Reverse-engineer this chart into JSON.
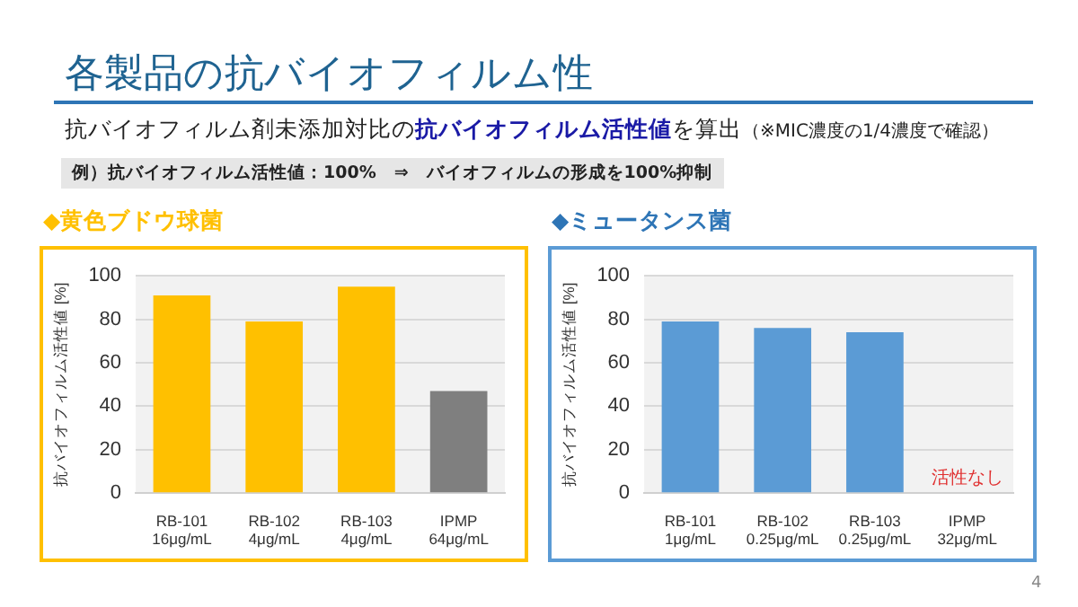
{
  "chart_data": [
    {
      "type": "bar",
      "title": "◆黄色ブドウ球菌",
      "ylabel": "抗バイオフィルム活性値 [%]",
      "categories": [
        "RB-101\n16μg/mL",
        "RB-102\n4μg/mL",
        "RB-103\n4μg/mL",
        "IPMP\n64μg/mL"
      ],
      "values": [
        91,
        79,
        95,
        47
      ],
      "colors": [
        "#ffc000",
        "#ffc000",
        "#ffc000",
        "#7f7f7f"
      ],
      "ylim": [
        0,
        100
      ],
      "yticks": [
        0,
        20,
        40,
        60,
        80,
        100
      ],
      "grid": "y",
      "legend": false,
      "annotations": [
        "各製品の抗バイオフィルム性",
        "抗バイオフィルム剤未添加対比の",
        "抗バイオフィルム活性値",
        "を算出",
        "（※MIC濃度の1/4濃度で確認）",
        "例）抗バイオフィルム活性値：100%　⇒　バイオフィルムの形成を100%抑制",
        "4"
      ]
    },
    {
      "type": "bar",
      "title": "◆ミュータンス菌",
      "ylabel": "抗バイオフィルム活性値 [%]",
      "categories": [
        "RB-101\n1μg/mL",
        "RB-102\n0.25μg/mL",
        "RB-103\n0.25μg/mL",
        "IPMP\n32μg/mL"
      ],
      "values": [
        79,
        76,
        74,
        null
      ],
      "color": "#5b9bd5",
      "ylim": [
        0,
        100
      ],
      "yticks": [
        0,
        20,
        40,
        60,
        80,
        100
      ],
      "grid": "y",
      "legend": false,
      "annotations": [
        "活性なし"
      ]
    }
  ]
}
